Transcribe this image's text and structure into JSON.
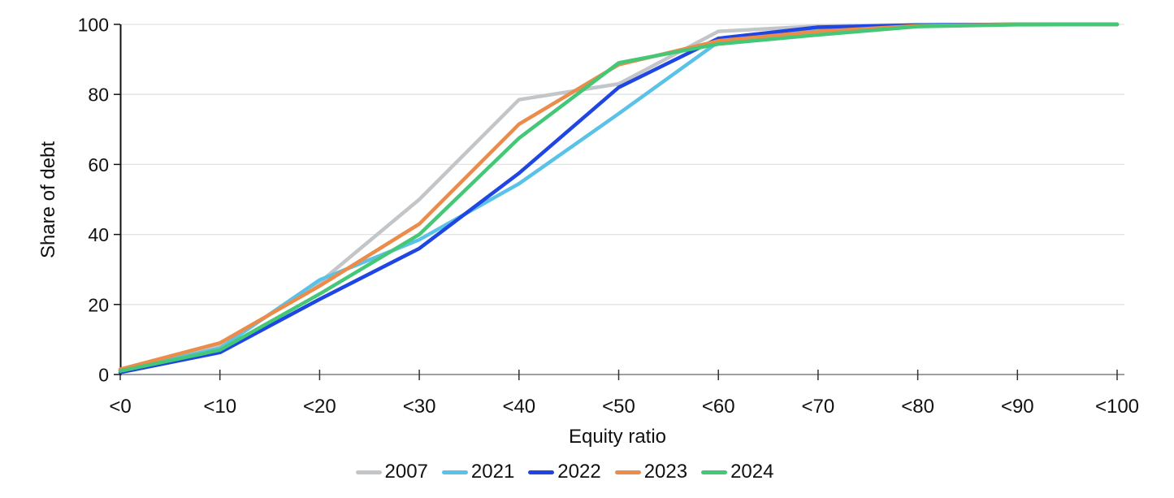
{
  "chart_data": {
    "type": "line",
    "title": "",
    "xlabel": "Equity ratio",
    "ylabel": "Share of debt",
    "categories": [
      "<0",
      "<10",
      "<20",
      "<30",
      "<40",
      "<50",
      "<60",
      "<70",
      "<80",
      "<90",
      "<100"
    ],
    "y_ticks": [
      0,
      20,
      40,
      60,
      80,
      100
    ],
    "ylim": [
      0,
      100
    ],
    "grid": "horizontal-only",
    "legend_position": "bottom-center",
    "series": [
      {
        "name": "2007",
        "color": "#c3c6c9",
        "values": [
          1.2,
          8.0,
          26.3,
          50.0,
          78.5,
          83.0,
          98.0,
          99.5,
          99.9,
          100,
          100
        ]
      },
      {
        "name": "2021",
        "color": "#5bc2e7",
        "values": [
          1.2,
          7.5,
          27.0,
          38.5,
          54.5,
          74.5,
          95.0,
          98.8,
          99.8,
          100,
          100
        ]
      },
      {
        "name": "2022",
        "color": "#1f45e2",
        "values": [
          0.6,
          6.3,
          21.5,
          36.0,
          57.5,
          82.0,
          96.0,
          99.2,
          99.8,
          100,
          100
        ]
      },
      {
        "name": "2023",
        "color": "#eb8c4b",
        "values": [
          1.5,
          9.0,
          25.3,
          43.0,
          71.5,
          88.5,
          95.3,
          98.0,
          99.6,
          100,
          100
        ]
      },
      {
        "name": "2024",
        "color": "#44c878",
        "values": [
          1.0,
          7.0,
          23.0,
          40.0,
          67.5,
          89.0,
          94.4,
          97.0,
          99.4,
          99.9,
          100
        ]
      }
    ],
    "style": {
      "grid_color": "#e2e2e2",
      "y_axis_color": "#111111",
      "x_axis_color": "#9aa0a4",
      "tick_color": "#333333",
      "text_color": "#111111"
    }
  }
}
